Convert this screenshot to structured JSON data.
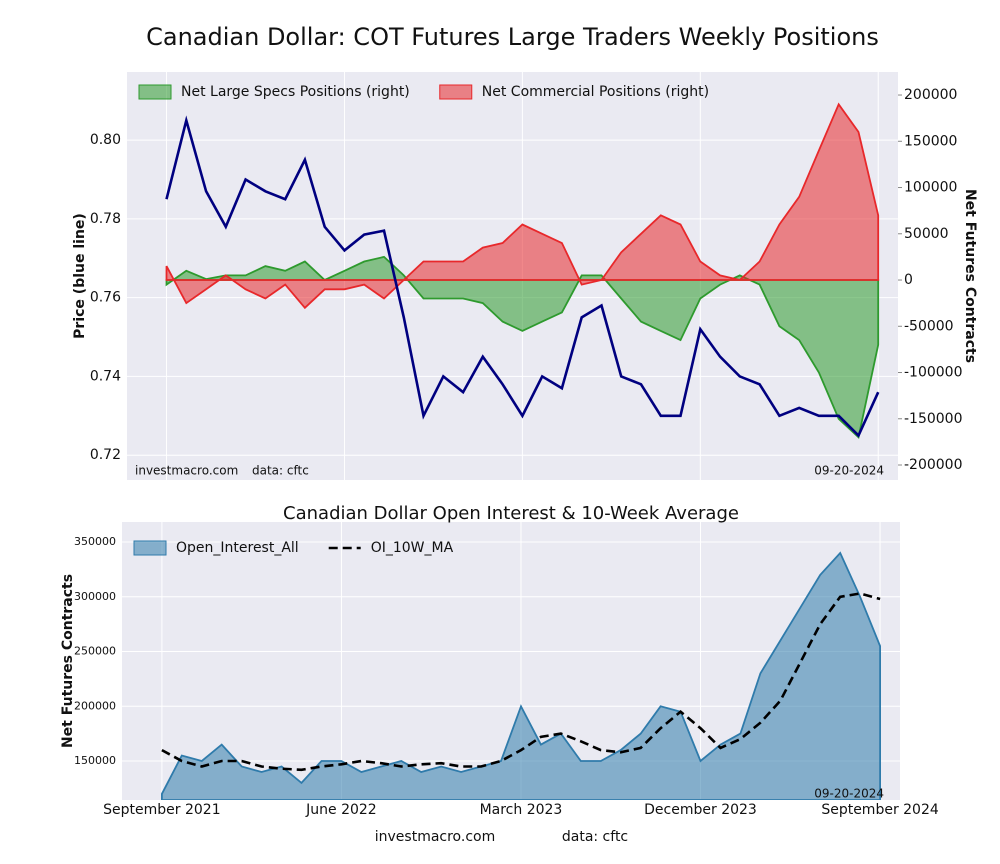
{
  "chart_data": [
    {
      "type": "line",
      "title": "Canadian Dollar: COT Futures Large Traders Weekly Positions",
      "ylabel": "Price (blue line)",
      "y2label": "Net Futures Contracts",
      "x": [
        "2021-09",
        "2021-10",
        "2021-11",
        "2021-12",
        "2022-01",
        "2022-02",
        "2022-03",
        "2022-04",
        "2022-05",
        "2022-06",
        "2022-07",
        "2022-08",
        "2022-09",
        "2022-10",
        "2022-11",
        "2022-12",
        "2023-01",
        "2023-02",
        "2023-03",
        "2023-04",
        "2023-05",
        "2023-06",
        "2023-07",
        "2023-08",
        "2023-09",
        "2023-10",
        "2023-11",
        "2023-12",
        "2024-01",
        "2024-02",
        "2024-03",
        "2024-04",
        "2024-05",
        "2024-06",
        "2024-07",
        "2024-08",
        "2024-09"
      ],
      "xlim": [
        "2021-07",
        "2024-10"
      ],
      "xticks": [
        "2021-09",
        "2022-06",
        "2023-03",
        "2023-12",
        "2024-09"
      ],
      "ylim": [
        0.7137,
        0.8173
      ],
      "yticks": [
        0.72,
        0.74,
        0.76,
        0.78,
        {
          "value": 0.8,
          "label": "0.80"
        }
      ],
      "y2lim": [
        -216200,
        224900
      ],
      "y2ticks": [
        -200000,
        -150000,
        -100000,
        -50000,
        0,
        50000,
        100000,
        150000,
        200000
      ],
      "grid": true,
      "legend": "upper left",
      "series": [
        {
          "type": "line",
          "color": "#000080",
          "values": [
            0.785,
            0.805,
            0.787,
            0.778,
            0.79,
            0.787,
            0.785,
            0.795,
            0.778,
            0.772,
            0.776,
            0.777,
            0.755,
            0.73,
            0.74,
            0.736,
            0.745,
            0.738,
            0.73,
            0.74,
            0.737,
            0.755,
            0.758,
            0.74,
            0.738,
            0.73,
            0.73,
            0.752,
            0.745,
            0.74,
            0.738,
            0.73,
            0.732,
            0.73,
            0.73,
            0.725,
            0.736
          ]
        },
        {
          "type": "area",
          "axis": "y2",
          "name": "Net Large Specs Positions (right)",
          "color": "#2e9a2e",
          "values": [
            -5000,
            10000,
            1000,
            5000,
            5000,
            15000,
            10000,
            20000,
            0,
            10000,
            20000,
            25000,
            5000,
            -20000,
            -20000,
            -20000,
            -25000,
            -45000,
            -55000,
            -45000,
            -35000,
            5000,
            5000,
            -20000,
            -45000,
            -55000,
            -65000,
            -20000,
            -5000,
            5000,
            -5000,
            -50000,
            -65000,
            -100000,
            -150000,
            -170000,
            -70000
          ]
        },
        {
          "type": "area",
          "axis": "y2",
          "name": "Net Commercial Positions (right)",
          "color": "#e8282b",
          "values": [
            15000,
            -25000,
            -10000,
            5000,
            -10000,
            -20000,
            -5000,
            -30000,
            -10000,
            -10000,
            -5000,
            -20000,
            0,
            20000,
            20000,
            20000,
            35000,
            40000,
            60000,
            50000,
            40000,
            -5000,
            0,
            30000,
            50000,
            70000,
            60000,
            20000,
            5000,
            0,
            20000,
            60000,
            90000,
            140000,
            190000,
            160000,
            70000
          ]
        }
      ],
      "annotations": [
        "investmacro.com",
        "data: cftc",
        "09-20-2024"
      ]
    },
    {
      "type": "line",
      "title": "Canadian Dollar Open Interest & 10-Week Average",
      "ylabel": "Net Futures Contracts",
      "x": [
        "2021-09",
        "2021-10",
        "2021-11",
        "2021-12",
        "2022-01",
        "2022-02",
        "2022-03",
        "2022-04",
        "2022-05",
        "2022-06",
        "2022-07",
        "2022-08",
        "2022-09",
        "2022-10",
        "2022-11",
        "2022-12",
        "2023-01",
        "2023-02",
        "2023-03",
        "2023-04",
        "2023-05",
        "2023-06",
        "2023-07",
        "2023-08",
        "2023-09",
        "2023-10",
        "2023-11",
        "2023-12",
        "2024-01",
        "2024-02",
        "2024-03",
        "2024-04",
        "2024-05",
        "2024-06",
        "2024-07",
        "2024-08",
        "2024-09"
      ],
      "xlim": [
        "2021-07",
        "2024-10"
      ],
      "xticks": [
        {
          "value": "2021-09",
          "label": "September 2021"
        },
        {
          "value": "2022-06",
          "label": "June 2022"
        },
        {
          "value": "2023-03",
          "label": "March 2023"
        },
        {
          "value": "2023-12",
          "label": "December 2023"
        },
        {
          "value": "2024-09",
          "label": "September 2024"
        }
      ],
      "ylim": [
        114400,
        368300
      ],
      "yticks": [
        150000,
        200000,
        250000,
        300000,
        350000
      ],
      "grid": true,
      "legend": "upper left",
      "series": [
        {
          "type": "area",
          "name": "Open_Interest_All",
          "color": "#2f7bab",
          "values": [
            120000,
            155000,
            150000,
            165000,
            145000,
            140000,
            145000,
            130000,
            150000,
            150000,
            140000,
            145000,
            150000,
            140000,
            145000,
            140000,
            145000,
            150000,
            200000,
            165000,
            175000,
            150000,
            150000,
            160000,
            175000,
            200000,
            195000,
            150000,
            165000,
            175000,
            230000,
            260000,
            290000,
            320000,
            340000,
            300000,
            255000
          ]
        },
        {
          "type": "line",
          "linestyle": "dashed",
          "name": "OI_10W_MA",
          "color": "#000000",
          "values": [
            160000,
            150000,
            145000,
            150000,
            150000,
            145000,
            143000,
            142000,
            145000,
            147000,
            150000,
            148000,
            145000,
            147000,
            148000,
            145000,
            145000,
            150000,
            160000,
            172000,
            175000,
            168000,
            160000,
            158000,
            162000,
            180000,
            195000,
            180000,
            162000,
            170000,
            185000,
            205000,
            240000,
            275000,
            300000,
            303000,
            298000
          ]
        }
      ],
      "annotations": [
        "09-20-2024"
      ]
    }
  ],
  "footer": [
    "investmacro.com",
    "data: cftc"
  ]
}
